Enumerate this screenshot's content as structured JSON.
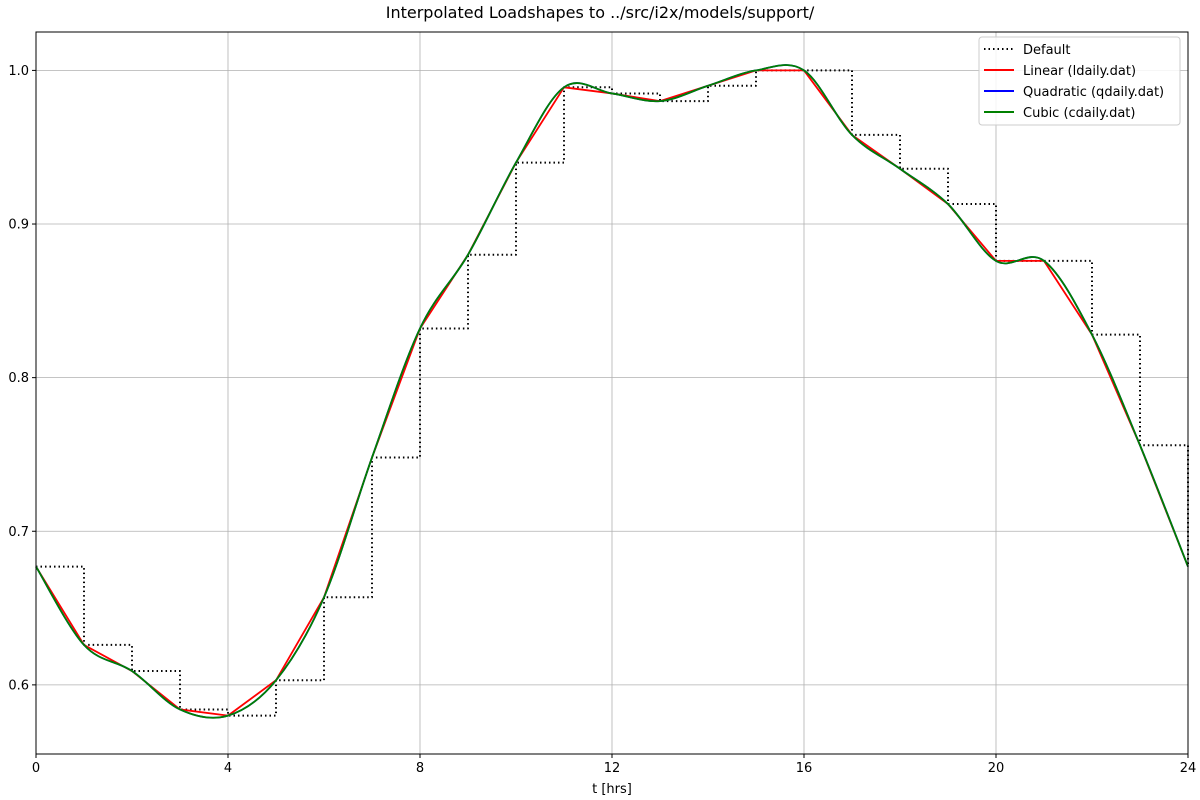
{
  "chart_data": {
    "type": "line",
    "title": "Interpolated Loadshapes to ../src/i2x/models/support/",
    "xlabel": "t [hrs]",
    "ylabel": "",
    "xlim": [
      0,
      24
    ],
    "ylim": [
      0.555,
      1.025
    ],
    "xticks": [
      0,
      4,
      8,
      12,
      16,
      20,
      24
    ],
    "xtick_labels": [
      "0",
      "4",
      "8",
      "12",
      "16",
      "20",
      "24"
    ],
    "yticks": [
      0.6,
      0.7,
      0.8,
      0.9,
      1.0
    ],
    "ytick_labels": [
      "0.6",
      "0.7",
      "0.8",
      "0.9",
      "1.0"
    ],
    "grid": true,
    "legend_position": "top-right",
    "series": [
      {
        "name": "Default",
        "style": "step-dotted",
        "color": "#000000",
        "x": [
          0,
          1,
          2,
          3,
          4,
          5,
          6,
          7,
          8,
          9,
          10,
          11,
          12,
          13,
          14,
          15,
          16,
          17,
          18,
          19,
          20,
          21,
          22,
          23,
          24
        ],
        "y": [
          0.677,
          0.626,
          0.609,
          0.584,
          0.58,
          0.603,
          0.657,
          0.748,
          0.832,
          0.88,
          0.94,
          0.989,
          0.985,
          0.98,
          0.99,
          1.0,
          1.0,
          0.958,
          0.936,
          0.913,
          0.876,
          0.876,
          0.828,
          0.756,
          0.677
        ]
      },
      {
        "name": "Linear (ldaily.dat)",
        "style": "linear",
        "color": "#ff0000",
        "x": [
          0,
          1,
          2,
          3,
          4,
          5,
          6,
          7,
          8,
          9,
          10,
          11,
          12,
          13,
          14,
          15,
          16,
          17,
          18,
          19,
          20,
          21,
          22,
          23,
          24
        ],
        "y": [
          0.677,
          0.626,
          0.609,
          0.584,
          0.58,
          0.603,
          0.657,
          0.748,
          0.832,
          0.88,
          0.94,
          0.989,
          0.985,
          0.98,
          0.99,
          1.0,
          1.0,
          0.958,
          0.936,
          0.913,
          0.876,
          0.876,
          0.828,
          0.756,
          0.677
        ]
      },
      {
        "name": "Quadratic (qdaily.dat)",
        "style": "smooth",
        "color": "#0000ff",
        "x": [
          0,
          1,
          2,
          3,
          4,
          5,
          6,
          7,
          8,
          9,
          10,
          11,
          12,
          13,
          14,
          15,
          16,
          17,
          18,
          19,
          20,
          21,
          22,
          23,
          24
        ],
        "y": [
          0.677,
          0.626,
          0.609,
          0.584,
          0.58,
          0.603,
          0.657,
          0.748,
          0.832,
          0.88,
          0.94,
          0.989,
          0.985,
          0.98,
          0.99,
          1.0,
          1.0,
          0.958,
          0.936,
          0.913,
          0.876,
          0.876,
          0.828,
          0.756,
          0.677
        ]
      },
      {
        "name": "Cubic (cdaily.dat)",
        "style": "smooth",
        "color": "#008000",
        "x": [
          0,
          1,
          2,
          3,
          4,
          5,
          6,
          7,
          8,
          9,
          10,
          11,
          12,
          13,
          14,
          15,
          16,
          17,
          18,
          19,
          20,
          21,
          22,
          23,
          24
        ],
        "y": [
          0.677,
          0.626,
          0.609,
          0.584,
          0.58,
          0.603,
          0.657,
          0.748,
          0.832,
          0.88,
          0.94,
          0.989,
          0.985,
          0.98,
          0.99,
          1.0,
          1.0,
          0.958,
          0.936,
          0.913,
          0.876,
          0.876,
          0.828,
          0.756,
          0.677
        ]
      }
    ]
  }
}
